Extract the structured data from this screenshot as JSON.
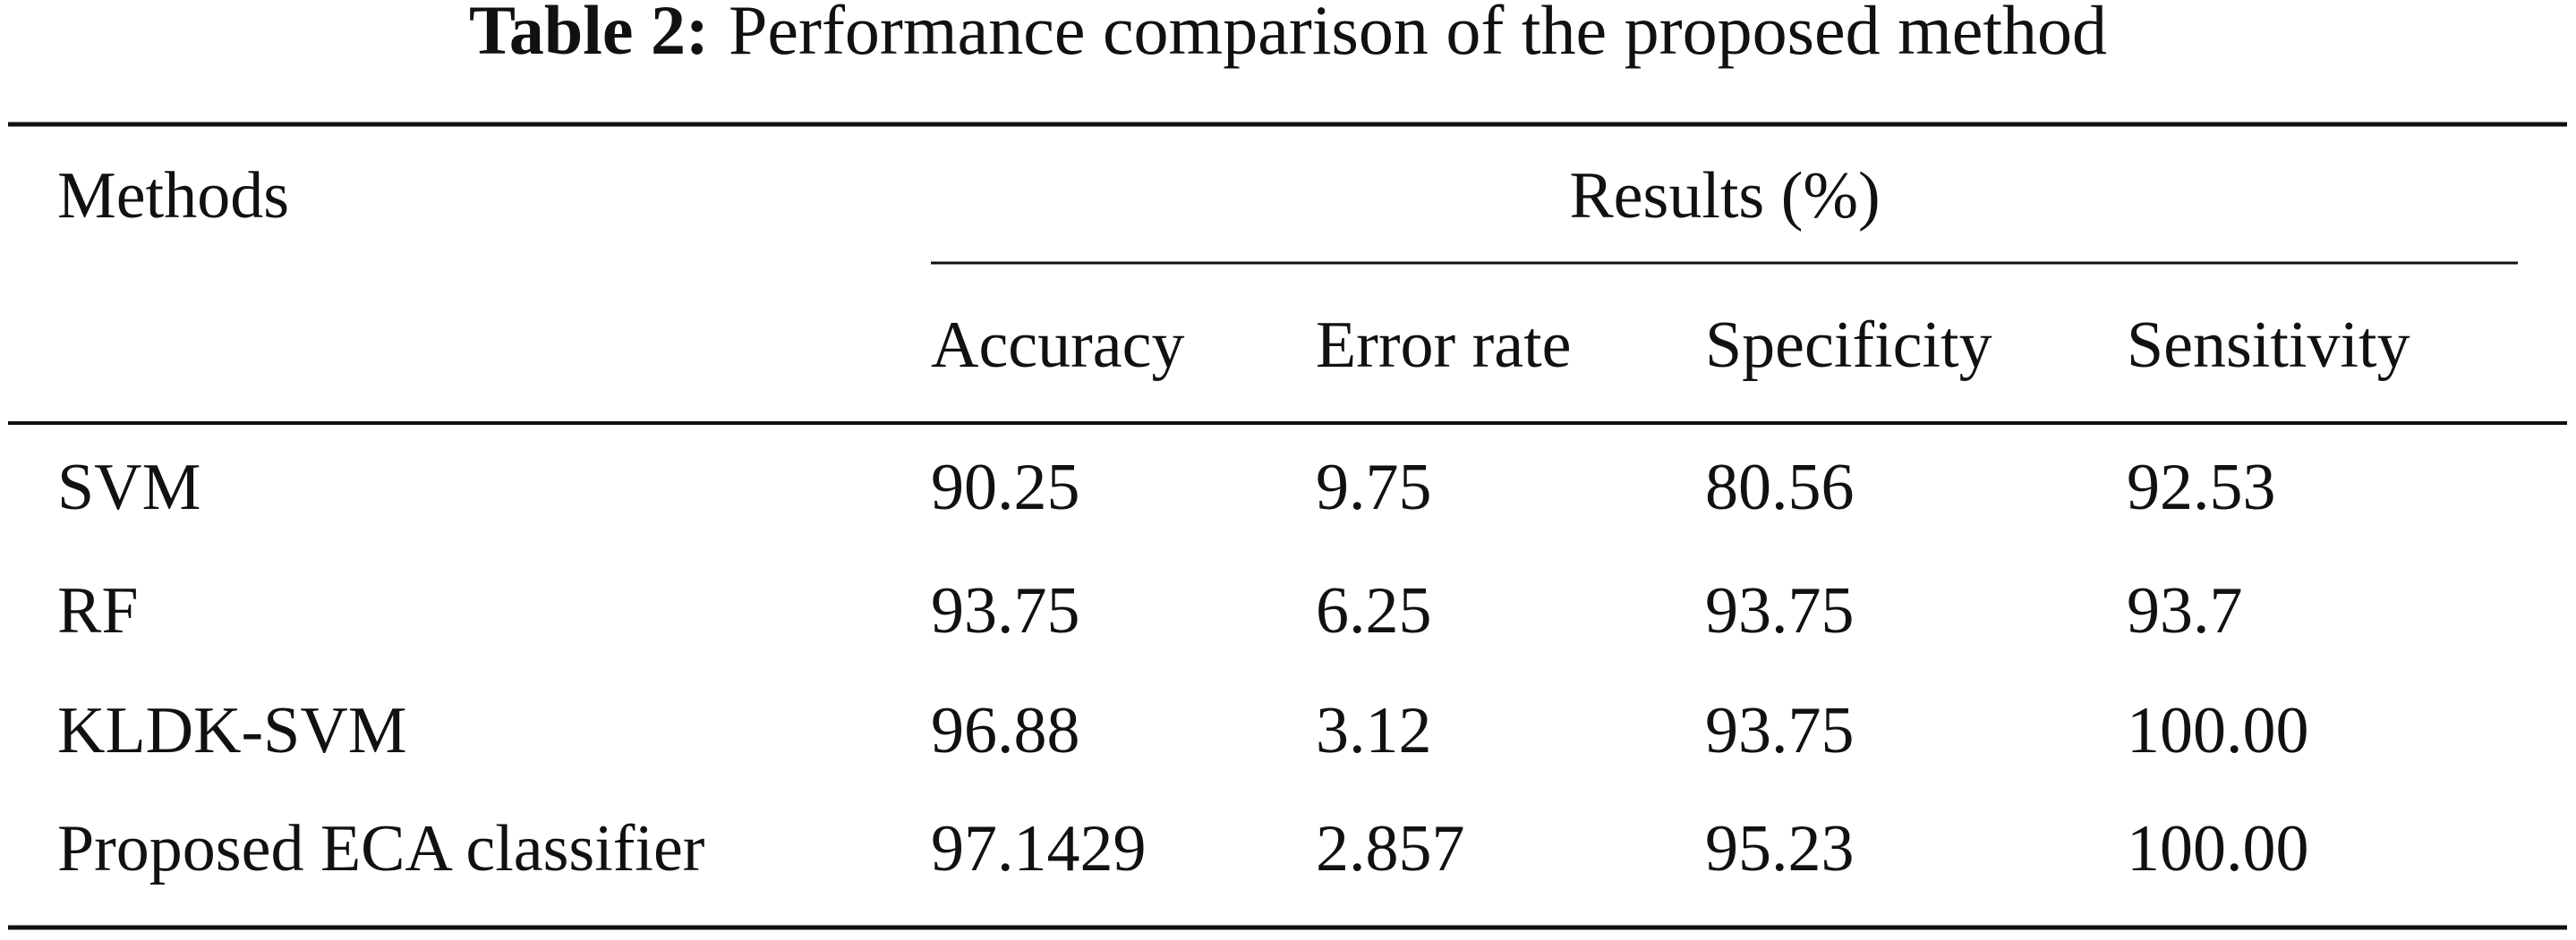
{
  "table": {
    "label": "Table 2:",
    "caption": "Performance comparison of the proposed method",
    "header": {
      "row_header": "Methods",
      "group": "Results (%)",
      "columns": [
        "Accuracy",
        "Error rate",
        "Specificity",
        "Sensitivity"
      ]
    },
    "rows": [
      [
        "SVM",
        "90.25",
        "9.75",
        "80.56",
        "92.53"
      ],
      [
        "RF",
        "93.75",
        "6.25",
        "93.75",
        "93.7"
      ],
      [
        "KLDK-SVM",
        "96.88",
        "3.12",
        "93.75",
        "100.00"
      ],
      [
        "Proposed ECA classifier",
        "97.1429",
        "2.857",
        "95.23",
        "100.00"
      ]
    ]
  }
}
